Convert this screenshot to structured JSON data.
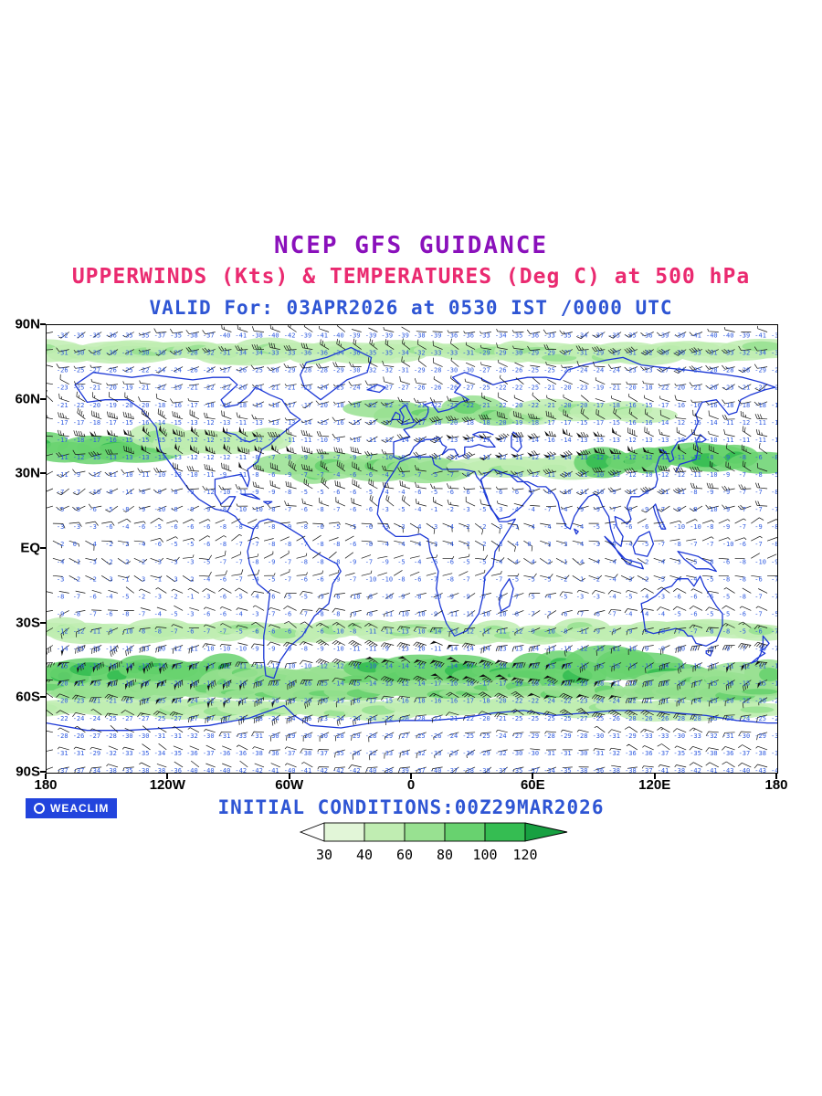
{
  "header": {
    "title": "NCEP GFS GUIDANCE",
    "subtitle": "UPPERWINDS (Kts) & TEMPERATURES (Deg C) at 500 hPa",
    "valid_line": "VALID For: 03APR2026 at 0530 IST /0000 UTC"
  },
  "footer": {
    "logo_label": "WEACLIM",
    "initial_conditions": "INITIAL CONDITIONS:00Z29MAR2026"
  },
  "colors": {
    "title": "#8a10bb",
    "subtitle": "#ea2a70",
    "valid": "#2e55d4",
    "initial": "#2e55d4",
    "coastline": "#1c38d6",
    "temperature_text": "#2e5ae0",
    "wind_barb": "#111111",
    "logo_background": "#2244dd"
  },
  "axes": {
    "y_labels": [
      "90N",
      "60N",
      "30N",
      "EQ",
      "30S",
      "60S",
      "90S"
    ],
    "x_labels": [
      "180",
      "120W",
      "60W",
      "0",
      "60E",
      "120E",
      "180"
    ]
  },
  "legend": {
    "values": [
      "30",
      "40",
      "60",
      "80",
      "100",
      "120"
    ],
    "colors": [
      "#ffffff",
      "#e2f6d8",
      "#c0edb2",
      "#98e191",
      "#68d26f",
      "#35bd52",
      "#17a041"
    ]
  },
  "chart_data": {
    "type": "heatmap",
    "title": "NCEP GFS GUIDANCE",
    "subtitle": "UPPERWINDS (Kts) & TEMPERATURES (Deg C) at 500 hPa",
    "valid": "VALID For: 03APR2026 at 0530 IST /0000 UTC",
    "initial_conditions": "INITIAL CONDITIONS:00Z29MAR2026",
    "projection": "equirectangular world map, 180W-180E, 90S-90N",
    "x_ticks": [
      "180",
      "120W",
      "60W",
      "0",
      "60E",
      "120E",
      "180"
    ],
    "y_ticks": [
      "90N",
      "60N",
      "30N",
      "EQ",
      "30S",
      "60S",
      "90S"
    ],
    "legend_levels_kts": [
      30,
      40,
      60,
      80,
      100,
      120
    ],
    "fields": [
      "wind barbs (Kts, black)",
      "temperature (Deg C, blue numbers)",
      "isotach shading (green, Kts)"
    ],
    "temperature_profile_degC": {
      "equator": -5,
      "lat30": -9,
      "lat45": -13,
      "lat60": -20,
      "lat75": -29,
      "pole": -40
    },
    "wind_speed_profile_kts": {
      "tropics": 10,
      "nh_jet_lat": 41,
      "nh_jet_max": 78,
      "sh_jet_lat": -50,
      "sh_jet_max": 90
    },
    "shade_bands": [
      {
        "lon0": -180,
        "lon1": 180,
        "lat": 79,
        "hw": 4.5,
        "level": 2
      },
      {
        "lon0": -180,
        "lon1": -118,
        "lat": 41,
        "hw": 6,
        "level": 4
      },
      {
        "lon0": -125,
        "lon1": -65,
        "lat": 44,
        "hw": 5,
        "level": 2
      },
      {
        "lon0": -60,
        "lon1": 25,
        "lat": 33,
        "hw": 5.5,
        "level": 3
      },
      {
        "lon0": -15,
        "lon1": 60,
        "lat": 55,
        "hw": 5,
        "level": 3
      },
      {
        "lon0": 35,
        "lon1": 95,
        "lat": 33,
        "hw": 5,
        "level": 2
      },
      {
        "lon0": 60,
        "lon1": 120,
        "lat": 55,
        "hw": 4,
        "level": 2
      },
      {
        "lon0": 95,
        "lon1": 180,
        "lat": 37,
        "hw": 6,
        "level": 4
      },
      {
        "lon0": -180,
        "lon1": 180,
        "lat": -33,
        "hw": 4.5,
        "level": 2
      },
      {
        "lon0": -180,
        "lon1": -90,
        "lat": -50,
        "hw": 7,
        "level": 4
      },
      {
        "lon0": -90,
        "lon1": -20,
        "lat": -52,
        "hw": 6,
        "level": 3
      },
      {
        "lon0": -20,
        "lon1": 60,
        "lat": -50,
        "hw": 6,
        "level": 4
      },
      {
        "lon0": 60,
        "lon1": 130,
        "lat": -48,
        "hw": 7,
        "level": 4
      },
      {
        "lon0": 130,
        "lon1": 180,
        "lat": -52,
        "hw": 6,
        "level": 3
      },
      {
        "lon0": -180,
        "lon1": 180,
        "lat": -57,
        "hw": 4,
        "level": 3
      },
      {
        "lon0": -180,
        "lon1": 180,
        "lat": -64,
        "hw": 4,
        "level": 2
      }
    ]
  },
  "map": {
    "coastlines": [
      [
        -166,
        66,
        -160,
        59,
        -151,
        60,
        -140,
        60,
        -133,
        56,
        -126,
        49,
        -124,
        40,
        -117,
        32,
        -110,
        24,
        -105,
        20,
        -97,
        16,
        -91,
        15,
        -87,
        21,
        -90,
        21,
        -94,
        18,
        -97,
        22,
        -97,
        28,
        -91,
        29,
        -84,
        30,
        -81,
        25,
        -80,
        28,
        -81,
        32,
        -76,
        35,
        -74,
        40,
        -70,
        42,
        -66,
        45,
        -60,
        49,
        -55,
        52,
        -60,
        55,
        -64,
        60,
        -70,
        62,
        -77,
        65,
        -80,
        62,
        -86,
        58,
        -92,
        57,
        -94,
        60,
        -90,
        63,
        -86,
        66,
        -90,
        69,
        -98,
        69,
        -108,
        68,
        -118,
        69,
        -128,
        70,
        -138,
        69,
        -148,
        70,
        -157,
        71,
        -166,
        66
      ],
      [
        -91,
        15,
        -87,
        13,
        -84,
        10,
        -81,
        9,
        -78,
        8
      ],
      [
        -78,
        8,
        -75,
        11,
        -71,
        12,
        -64,
        10,
        -60,
        8,
        -54,
        5,
        -50,
        0,
        -44,
        -3,
        -37,
        -6,
        -35,
        -9,
        -39,
        -14,
        -41,
        -22,
        -48,
        -27,
        -54,
        -35,
        -60,
        -39,
        -65,
        -45,
        -68,
        -52,
        -72,
        -51,
        -73,
        -44,
        -73,
        -35,
        -71,
        -25,
        -70,
        -18,
        -76,
        -14,
        -80,
        -6,
        -81,
        -1,
        -78,
        8
      ],
      [
        -45,
        60,
        -53,
        65,
        -55,
        70,
        -52,
        75,
        -42,
        77,
        -30,
        81,
        -20,
        77,
        -22,
        71,
        -32,
        68,
        -40,
        63,
        -45,
        60
      ],
      [
        -22,
        64,
        -17,
        66,
        -13,
        65,
        -16,
        63,
        -22,
        64
      ],
      [
        -5,
        50,
        -4,
        53,
        -6,
        56,
        -3,
        58,
        -2,
        56,
        0,
        53,
        1,
        51,
        -5,
        50
      ],
      [
        -10,
        52,
        -8,
        55,
        -6,
        54,
        -6,
        52,
        -10,
        52
      ],
      [
        -9,
        37,
        -9,
        43,
        -1,
        45,
        -4,
        48,
        0,
        49,
        3,
        51,
        7,
        53,
        8,
        55,
        8,
        57,
        6,
        58,
        10,
        59,
        11,
        57,
        13,
        55,
        18,
        56,
        21,
        57,
        24,
        59,
        28,
        60,
        24,
        62,
        21,
        63,
        24,
        66,
        20,
        69,
        26,
        71,
        33,
        69,
        40,
        66,
        44,
        67,
        50,
        68,
        57,
        69,
        66,
        69,
        73,
        68,
        77,
        72,
        85,
        74,
        96,
        76,
        104,
        77,
        113,
        74,
        123,
        73,
        135,
        72,
        145,
        71,
        155,
        70,
        163,
        69,
        172,
        67,
        179,
        65
      ],
      [
        -9,
        37,
        -6,
        36,
        -4,
        37,
        -1,
        38,
        1,
        41,
        4,
        43,
        7,
        44,
        10,
        44,
        13,
        45,
        15,
        42,
        17,
        41,
        15,
        38,
        18,
        40,
        21,
        40,
        23,
        37,
        26,
        38,
        26,
        41,
        29,
        41,
        33,
        42,
        37,
        41,
        41,
        41,
        38,
        44,
        33,
        45,
        30,
        46,
        33,
        47,
        37,
        47,
        40,
        46
      ],
      [
        -6,
        35,
        0,
        37,
        10,
        37,
        11,
        34,
        15,
        32,
        20,
        32,
        25,
        32,
        31,
        31,
        32,
        29,
        34,
        27,
        37,
        21,
        38,
        18,
        43,
        11,
        47,
        11,
        51,
        12,
        45,
        4,
        41,
        -1,
        40,
        -7,
        36,
        -11,
        35,
        -19,
        33,
        -26,
        27,
        -33,
        21,
        -35,
        17,
        -30,
        14,
        -23,
        12,
        -16,
        13,
        -9,
        9,
        -1,
        8,
        4,
        4,
        6,
        -2,
        5,
        -8,
        5,
        -13,
        8,
        -17,
        14,
        -16,
        20,
        -13,
        26,
        -9,
        31,
        -6,
        35
      ],
      [
        44,
        -25,
        48,
        -23,
        50,
        -16,
        48,
        -12,
        44,
        -17,
        43,
        -22,
        44,
        -25
      ],
      [
        34,
        28,
        36,
        22,
        39,
        16,
        43,
        12,
        48,
        13,
        54,
        17,
        59,
        22,
        58,
        25,
        52,
        29,
        47,
        30,
        40,
        32,
        34,
        28
      ],
      [
        48,
        30,
        52,
        27,
        57,
        27,
        62,
        25,
        66,
        25,
        70,
        22,
        72,
        19,
        73,
        15,
        76,
        9,
        78,
        8,
        80,
        13,
        83,
        17,
        87,
        21,
        90,
        22,
        92,
        21,
        94,
        17,
        97,
        13,
        98,
        8,
        100,
        3,
        103,
        1,
        104,
        5,
        101,
        9,
        100,
        13,
        103,
        12,
        106,
        10,
        108,
        12,
        106,
        17,
        108,
        21,
        112,
        21,
        116,
        23,
        120,
        25,
        121,
        28,
        120,
        32,
        122,
        37,
        125,
        39,
        122,
        40
      ],
      [
        122,
        40,
        125,
        39,
        127,
        35,
        129,
        36,
        128,
        39,
        131,
        43,
        135,
        44,
        139,
        47,
        141,
        51,
        140,
        54,
        143,
        59,
        150,
        60,
        156,
        54,
        160,
        55,
        162,
        60,
        167,
        62,
        174,
        64,
        179,
        65
      ],
      [
        130,
        31,
        132,
        34,
        136,
        35,
        140,
        36,
        141,
        40,
        140,
        43,
        143,
        43,
        145,
        44,
        142,
        46,
        140,
        43
      ],
      [
        109,
        1,
        112,
        5,
        117,
        7,
        119,
        2,
        116,
        -3,
        110,
        -2,
        109,
        1
      ],
      [
        95,
        5,
        99,
        2,
        102,
        -2,
        106,
        -6,
        110,
        -7,
        114,
        -8,
        113,
        -6,
        105,
        -4,
        97,
        3,
        95,
        5
      ],
      [
        131,
        -1,
        136,
        -2,
        141,
        -3,
        147,
        -6,
        150,
        -9,
        146,
        -8,
        140,
        -8,
        134,
        -4,
        131,
        -1
      ],
      [
        120,
        18,
        122,
        13,
        125,
        8,
        123,
        8,
        120,
        14,
        119,
        17,
        120,
        18
      ],
      [
        113,
        -22,
        114,
        -27,
        115,
        -33,
        119,
        -34,
        125,
        -33,
        130,
        -32,
        134,
        -33,
        136,
        -35,
        138,
        -35,
        140,
        -38,
        145,
        -39,
        150,
        -37,
        153,
        -31,
        153,
        -26,
        150,
        -23,
        147,
        -19,
        144,
        -15,
        142,
        -11,
        139,
        -15,
        136,
        -12,
        131,
        -12,
        128,
        -15,
        124,
        -16,
        120,
        -19,
        116,
        -21,
        113,
        -22
      ],
      [
        145,
        -41,
        148,
        -41,
        147,
        -43,
        145,
        -42,
        145,
        -41
      ],
      [
        173,
        -35,
        176,
        -38,
        174,
        -40,
        172,
        -41,
        174,
        -42,
        170,
        -44,
        167,
        -46,
        170,
        -45,
        172,
        -42,
        173,
        -38,
        173,
        -35
      ],
      [
        -180,
        -70,
        -160,
        -73,
        -140,
        -73,
        -120,
        -72,
        -100,
        -71,
        -80,
        -68,
        -63,
        -63,
        -58,
        -67,
        -50,
        -71,
        -35,
        -72,
        -20,
        -70,
        -5,
        -69,
        10,
        -69,
        25,
        -68,
        40,
        -66,
        55,
        -65,
        70,
        -67,
        85,
        -66,
        100,
        -65,
        115,
        -65,
        130,
        -66,
        145,
        -67,
        160,
        -69,
        175,
        -70,
        180,
        -70
      ],
      [
        50,
        47,
        53,
        45,
        54,
        41,
        52,
        39,
        49,
        41,
        49,
        45,
        50,
        47
      ],
      [
        -92,
        47,
        -87,
        46,
        -84,
        44,
        -80,
        43,
        -77,
        44
      ],
      [
        80,
        8,
        82,
        7,
        81,
        6,
        80,
        8
      ],
      [
        -84,
        22,
        -79,
        22,
        -75,
        20,
        -80,
        21,
        -84,
        22
      ],
      [
        -73,
        19,
        -69,
        19,
        -71,
        18,
        -73,
        19
      ]
    ]
  }
}
